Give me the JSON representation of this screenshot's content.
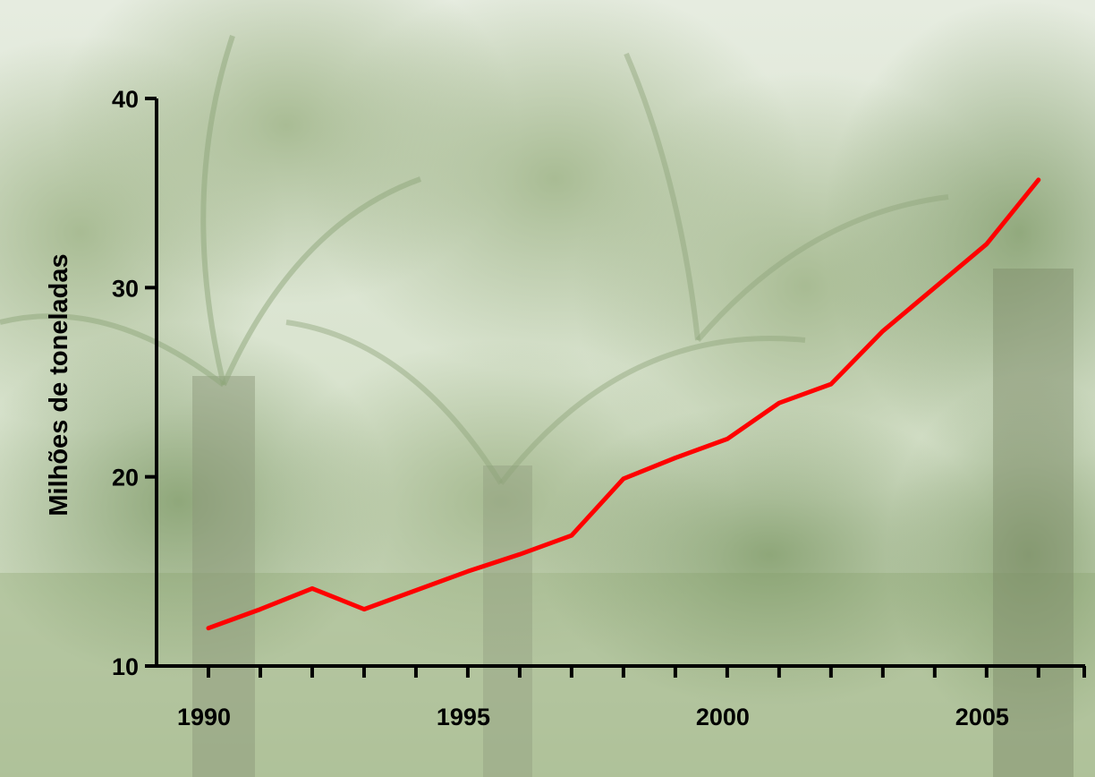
{
  "chart_data": {
    "type": "line",
    "title": "",
    "xlabel": "",
    "ylabel": "Milhões de toneladas",
    "x": [
      1990,
      1991,
      1992,
      1993,
      1994,
      1995,
      1996,
      1997,
      1998,
      1999,
      2000,
      2001,
      2002,
      2003,
      2004,
      2005,
      2006
    ],
    "series": [
      {
        "values": [
          12.0,
          13.0,
          14.1,
          13.0,
          14.0,
          15.0,
          15.9,
          16.9,
          19.9,
          21.0,
          22.0,
          23.9,
          24.9,
          27.7,
          30.0,
          32.3,
          35.7
        ],
        "color": "#ff0000"
      }
    ],
    "xlim": [
      1989,
      2006.9
    ],
    "ylim": [
      10,
      40
    ],
    "x_ticks": [
      1990,
      1991,
      1992,
      1993,
      1994,
      1995,
      1996,
      1997,
      1998,
      1999,
      2000,
      2001,
      2002,
      2003,
      2004,
      2005,
      2006
    ],
    "x_tick_labels": [
      "1990",
      "1995",
      "2000",
      "2005"
    ],
    "y_ticks": [
      10,
      20,
      30,
      40
    ],
    "y_tick_labels": [
      "10",
      "20",
      "30",
      "40"
    ],
    "grid": false,
    "legend": "none",
    "background": "photo-of-oil-palm-plantation"
  }
}
